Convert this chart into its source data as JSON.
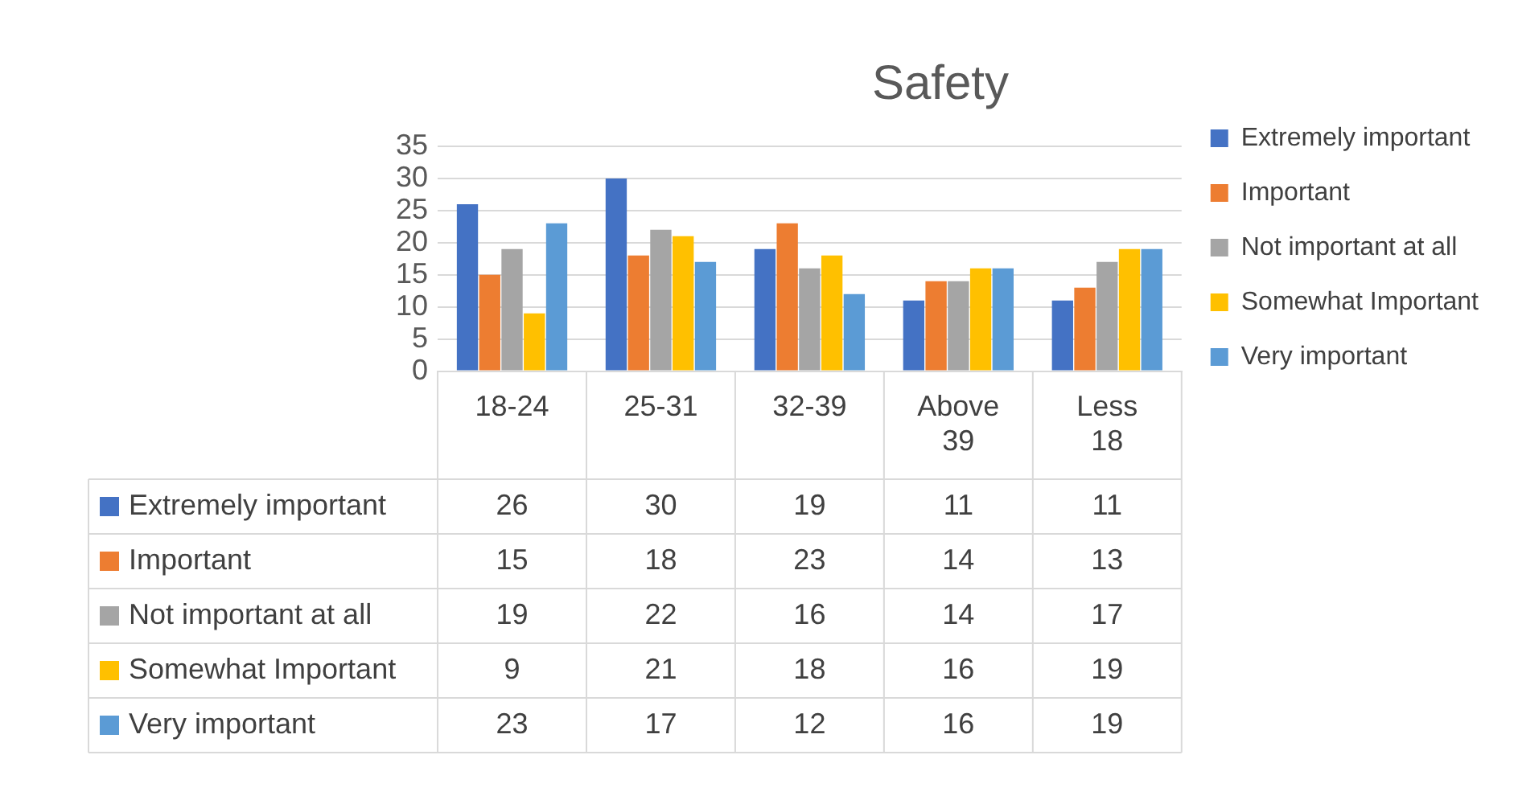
{
  "chart_data": {
    "type": "bar",
    "title": "Safety",
    "categories": [
      "18-24",
      "25-31",
      "32-39",
      "Above 39",
      "Less 18"
    ],
    "series": [
      {
        "name": "Extremely important",
        "color": "#4472c4",
        "values": [
          26,
          30,
          19,
          11,
          11
        ]
      },
      {
        "name": "Important",
        "color": "#ed7d31",
        "values": [
          15,
          18,
          23,
          14,
          13
        ]
      },
      {
        "name": "Not important at all",
        "color": "#a5a5a5",
        "values": [
          19,
          22,
          16,
          14,
          17
        ]
      },
      {
        "name": "Somewhat Important",
        "color": "#ffc000",
        "values": [
          9,
          21,
          18,
          16,
          19
        ]
      },
      {
        "name": "Very important",
        "color": "#5b9bd5",
        "values": [
          23,
          17,
          12,
          16,
          19
        ]
      }
    ],
    "ylim": [
      0,
      35
    ],
    "yticks": [
      0,
      5,
      10,
      15,
      20,
      25,
      30,
      35
    ],
    "grid": "y",
    "legend": "right",
    "data_labels": true
  }
}
